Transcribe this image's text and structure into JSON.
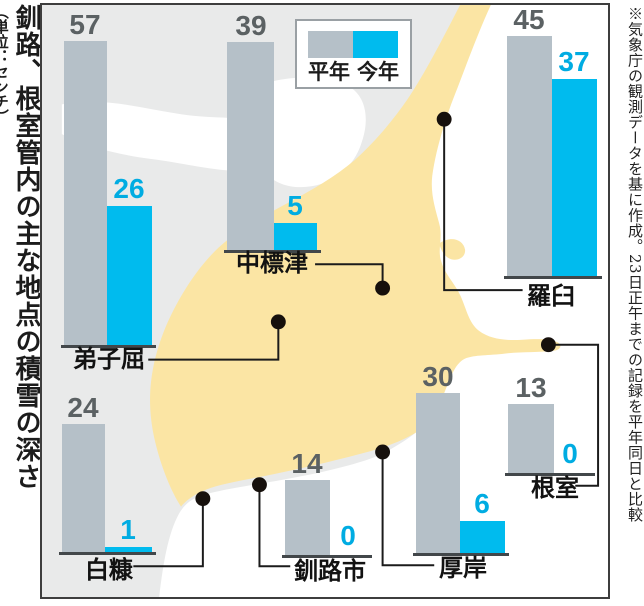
{
  "title": {
    "main": "釧路、根室管内の主な地点の積雪の深さ",
    "unit": "（単位：センチ）"
  },
  "source_note": "※気象庁の観測データを基に作成。23日正午までの記録を平年同日と比較",
  "legend": {
    "normal_label": "平年",
    "current_label": "今年"
  },
  "colors": {
    "normal_bar": "#B5C0C8",
    "current_bar": "#00BBEE",
    "current_text": "#00ACE2",
    "normal_text": "#5B6163",
    "land": "#FBE5A4",
    "sea": "#FFFFFF",
    "background": "#E9EAEA"
  },
  "chart_data": {
    "type": "bar",
    "title": "釧路、根室管内の主な地点の積雪の深さ",
    "unit": "センチ",
    "categories": [
      "弟子屈",
      "中標津",
      "羅臼",
      "白糠",
      "釧路市",
      "厚岸",
      "根室"
    ],
    "series": [
      {
        "name": "平年",
        "values": [
          57,
          39,
          45,
          24,
          14,
          30,
          13
        ]
      },
      {
        "name": "今年",
        "values": [
          26,
          5,
          37,
          1,
          0,
          6,
          0
        ]
      }
    ],
    "note": "気象庁の観測データを基に作成。23日正午までの記録を平年同日と比較",
    "legend_position": "top-center",
    "layout_hint": "各地点の棒グラフを北海道東部（釧路・根室管内）の地図上に配置"
  }
}
